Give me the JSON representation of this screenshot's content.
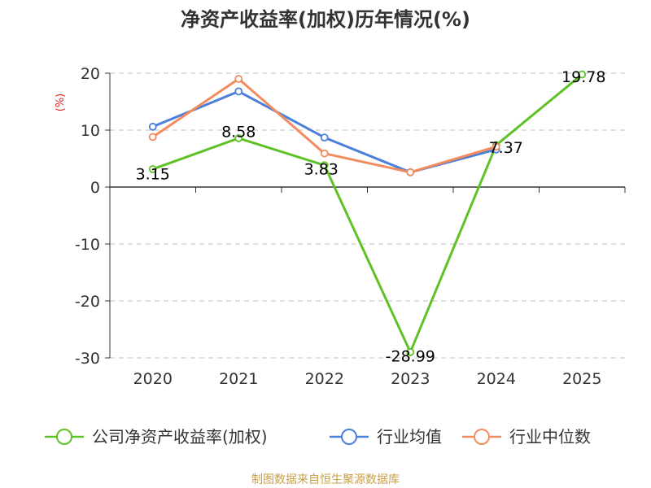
{
  "chart_data": {
    "type": "line",
    "title": "净资产收益率(加权)历年情况(%)",
    "ylabel": "(%)",
    "xlabel": "",
    "categories": [
      "2020",
      "2021",
      "2022",
      "2023",
      "2024",
      "2025"
    ],
    "ylim": [
      -30,
      20
    ],
    "yticks": [
      20,
      10,
      0,
      -10,
      -20,
      -30
    ],
    "grid": true,
    "legend_position": "bottom",
    "series": [
      {
        "name": "公司净资产收益率(加权)",
        "color": "#5ec226",
        "values": [
          3.15,
          8.58,
          3.83,
          -28.99,
          7.37,
          19.78
        ],
        "labels": [
          "3.15",
          "8.58",
          "3.83",
          "-28.99",
          "7.37",
          "19.78"
        ]
      },
      {
        "name": "行业均值",
        "color": "#4a7fdb",
        "values": [
          10.6,
          16.8,
          8.7,
          2.6,
          6.6,
          null
        ]
      },
      {
        "name": "行业中位数",
        "color": "#f28c5c",
        "values": [
          8.8,
          19.0,
          5.9,
          2.6,
          7.1,
          null
        ]
      }
    ],
    "source": "制图数据来自恒生聚源数据库",
    "source_color": "#c8a048",
    "ylabel_color": "#e02020"
  }
}
